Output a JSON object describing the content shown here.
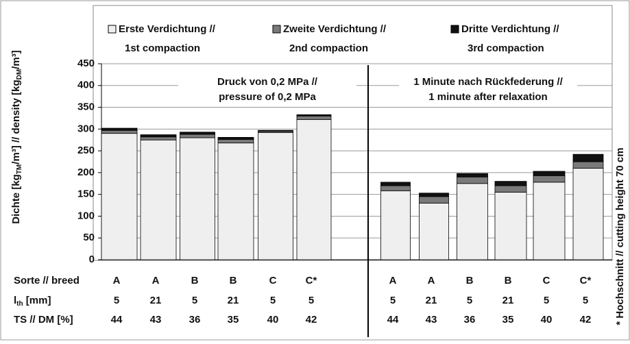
{
  "chart_data": {
    "type": "stacked_bar",
    "y_label": [
      "Dichte [kg",
      "TM",
      "/m³] // density  [kg",
      "DM",
      "/m³]"
    ],
    "categories": [
      "A",
      "A",
      "B",
      "B",
      "C",
      "C*",
      "A",
      "A",
      "B",
      "B",
      "C",
      "C*"
    ],
    "category_label": "Sorte // breed",
    "rows": [
      {
        "label": [
          "l",
          "th",
          " [mm]"
        ],
        "values": [
          5,
          21,
          5,
          21,
          5,
          5,
          5,
          21,
          5,
          21,
          5,
          5
        ]
      },
      {
        "label": [
          "TS // DM [%]"
        ],
        "values": [
          44,
          43,
          36,
          35,
          40,
          42,
          44,
          43,
          36,
          35,
          40,
          42
        ]
      }
    ],
    "series": [
      {
        "name": [
          "Erste Verdichtung //",
          "1st compaction"
        ],
        "color": "#efefef",
        "values": [
          290,
          275,
          280,
          268,
          292,
          322,
          158,
          130,
          175,
          155,
          178,
          210
        ]
      },
      {
        "name": [
          "Zweite Verdichtung //",
          "2nd compaction"
        ],
        "color": "#7a7a7a",
        "values": [
          7,
          7,
          8,
          8,
          3,
          8,
          12,
          15,
          15,
          15,
          15,
          15
        ]
      },
      {
        "name": [
          "Dritte Verdichtung //",
          "3rd compaction"
        ],
        "color": "#111111",
        "values": [
          5,
          5,
          5,
          5,
          2,
          3,
          8,
          8,
          8,
          10,
          10,
          17
        ]
      }
    ],
    "panels": [
      [
        "Druck von 0,2 MPa //",
        "pressure of 0,2 MPa"
      ],
      [
        "1 Minute nach Rückfederung //",
        "1 minute after relaxation"
      ]
    ],
    "note": "* Hochschnitt // cutting height 70 cm",
    "ylim": [
      0,
      450
    ],
    "yticks": [
      0,
      50,
      100,
      150,
      200,
      250,
      300,
      350,
      400,
      450
    ],
    "grid": true
  }
}
